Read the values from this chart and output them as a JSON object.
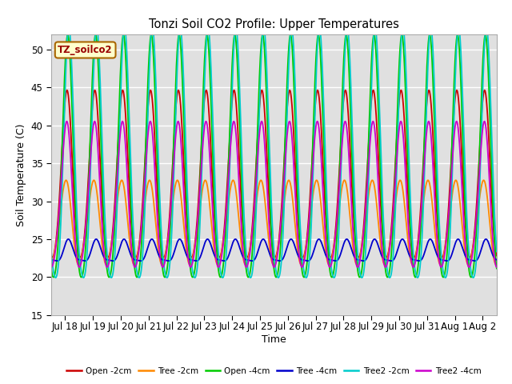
{
  "title": "Tonzi Soil CO2 Profile: Upper Temperatures",
  "xlabel": "Time",
  "ylabel": "Soil Temperature (C)",
  "ylim": [
    15,
    52
  ],
  "background_color": "#ffffff",
  "plot_bg_color": "#e0e0e0",
  "grid_color": "#ffffff",
  "annotation_text": "TZ_soilco2",
  "annotation_bg": "#ffffcc",
  "annotation_border": "#aa6600",
  "annotation_text_color": "#990000",
  "series": [
    {
      "label": "Open -2cm",
      "color": "#cc0000",
      "lw": 1.3
    },
    {
      "label": "Tree -2cm",
      "color": "#ff8800",
      "lw": 1.3
    },
    {
      "label": "Open -4cm",
      "color": "#00cc00",
      "lw": 1.3
    },
    {
      "label": "Tree -4cm",
      "color": "#0000cc",
      "lw": 1.3
    },
    {
      "label": "Tree2 -2cm",
      "color": "#00cccc",
      "lw": 1.3
    },
    {
      "label": "Tree2 -4cm",
      "color": "#cc00cc",
      "lw": 1.3
    }
  ],
  "x_tick_labels": [
    "Jul 18",
    "Jul 19",
    "Jul 20",
    "Jul 21",
    "Jul 22",
    "Jul 23",
    "Jul 24",
    "Jul 25",
    "Jul 26",
    "Jul 27",
    "Jul 28",
    "Jul 29",
    "Jul 30",
    "Jul 31",
    "Aug 1",
    "Aug 2"
  ],
  "x_tick_positions": [
    1,
    2,
    3,
    4,
    5,
    6,
    7,
    8,
    9,
    10,
    11,
    12,
    13,
    14,
    15,
    16
  ],
  "yticks": [
    15,
    20,
    25,
    30,
    35,
    40,
    45,
    50
  ]
}
